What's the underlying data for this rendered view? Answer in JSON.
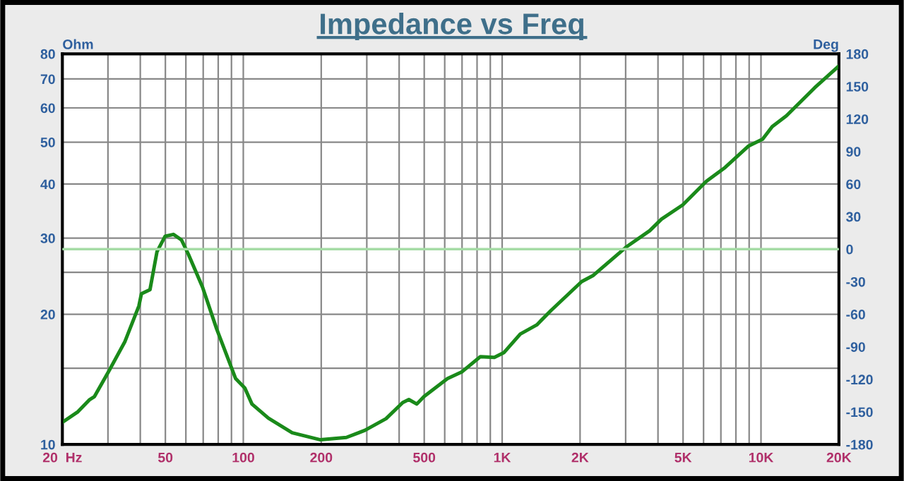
{
  "chart_data": {
    "type": "line",
    "title": "Impedance vs Freq",
    "ylabel": "Ohm",
    "y2label": "Deg",
    "log": "xy",
    "grid": true,
    "legend": false,
    "marker": "none",
    "line_style": "solid",
    "series": [
      {
        "color": "#1a8a1a",
        "x": [
          20,
          22.96,
          25.5,
          26.6,
          30.1,
          34.9,
          39.5,
          40.4,
          43.6,
          46.4,
          49.9,
          53.7,
          57.7,
          61.4,
          69.6,
          78.9,
          93.4,
          101.4,
          108,
          125,
          154.5,
          198.7,
          250,
          295,
          356,
          413,
          436,
          468,
          499,
          615,
          697,
          824,
          933,
          1015,
          1175,
          1361,
          1544,
          2029,
          2250,
          3014,
          3716,
          4129,
          4987,
          6153,
          7267,
          8960,
          10150,
          11050,
          12530,
          16120,
          19880
        ],
        "values": [
          11.25,
          11.9,
          12.7,
          12.9,
          14.7,
          17.3,
          20.9,
          22.3,
          22.8,
          27.9,
          30.3,
          30.6,
          29.7,
          27.5,
          23.1,
          18.5,
          14.2,
          13.5,
          12.4,
          11.5,
          10.64,
          10.25,
          10.38,
          10.78,
          11.47,
          12.5,
          12.7,
          12.4,
          12.9,
          14.2,
          14.7,
          15.96,
          15.9,
          16.3,
          18.0,
          18.9,
          20.4,
          23.8,
          24.6,
          28.6,
          31.2,
          33.2,
          35.8,
          40.6,
          43.7,
          49.0,
          50.8,
          54.3,
          57.5,
          66.8,
          74.8
        ]
      },
      {
        "color": "#a6dca6",
        "axis": "y2",
        "x": [
          20,
          20000
        ],
        "values": [
          0,
          0
        ]
      }
    ],
    "xlim": [
      20,
      20000
    ],
    "xticks": [
      {
        "value": 20,
        "label": "20  Hz"
      },
      {
        "value": 30,
        "label": null
      },
      {
        "value": 40,
        "label": null
      },
      50,
      {
        "value": 60,
        "label": null
      },
      {
        "value": 70,
        "label": null
      },
      {
        "value": 80,
        "label": null
      },
      {
        "value": 90,
        "label": null
      },
      100,
      200,
      {
        "value": 300,
        "label": null
      },
      {
        "value": 400,
        "label": null
      },
      500,
      {
        "value": 600,
        "label": null
      },
      {
        "value": 700,
        "label": null
      },
      {
        "value": 800,
        "label": null
      },
      {
        "value": 900,
        "label": null
      },
      {
        "value": 1000,
        "label": "1K"
      },
      {
        "value": 2000,
        "label": "2K"
      },
      {
        "value": 3000,
        "label": null
      },
      {
        "value": 4000,
        "label": null
      },
      {
        "value": 5000,
        "label": "5K"
      },
      {
        "value": 6000,
        "label": null
      },
      {
        "value": 7000,
        "label": null
      },
      {
        "value": 8000,
        "label": null
      },
      {
        "value": 9000,
        "label": null
      },
      {
        "value": 10000,
        "label": "10K"
      },
      {
        "value": 20000,
        "label": "20K"
      }
    ],
    "ylim": [
      10,
      80
    ],
    "yticks": [
      10,
      {
        "value": 15,
        "label": null
      },
      20,
      {
        "value": 25,
        "label": null
      },
      30,
      40,
      50,
      60,
      70,
      80
    ],
    "y2lim": [
      -180,
      180
    ],
    "y2ticks": [
      -180,
      -150,
      -120,
      -90,
      -60,
      -30,
      0,
      30,
      60,
      90,
      120,
      150,
      180
    ]
  }
}
